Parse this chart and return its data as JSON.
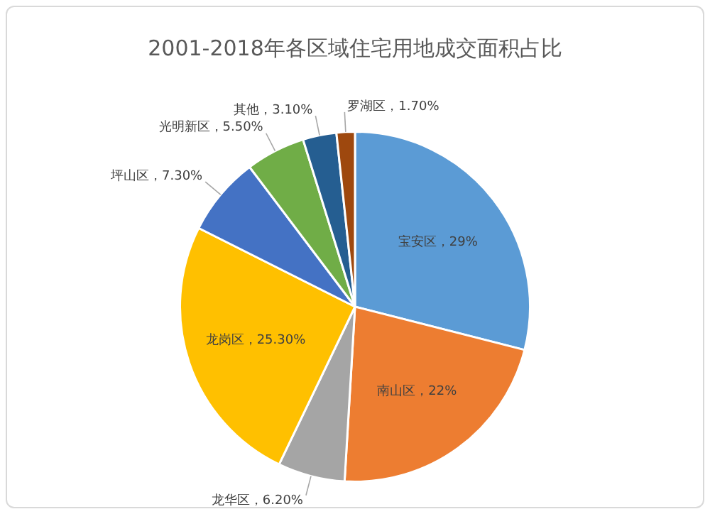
{
  "chart_data": {
    "type": "pie",
    "title": "2001-2018年各区域住宅用地成交面积占比",
    "categories": [
      "宝安区",
      "南山区",
      "龙华区",
      "龙岗区",
      "坪山区",
      "光明新区",
      "其他",
      "罗湖区"
    ],
    "values": [
      29,
      22,
      6.2,
      25.3,
      7.3,
      5.5,
      3.1,
      1.7
    ],
    "colors": [
      "#5b9bd5",
      "#ed7d31",
      "#a5a5a5",
      "#ffc000",
      "#4472c4",
      "#70ad47",
      "#255e91",
      "#9e480e"
    ],
    "value_labels": [
      "29%",
      "22%",
      "6.20%",
      "25.30%",
      "7.30%",
      "5.50%",
      "3.10%",
      "1.70%"
    ],
    "legend": false
  }
}
